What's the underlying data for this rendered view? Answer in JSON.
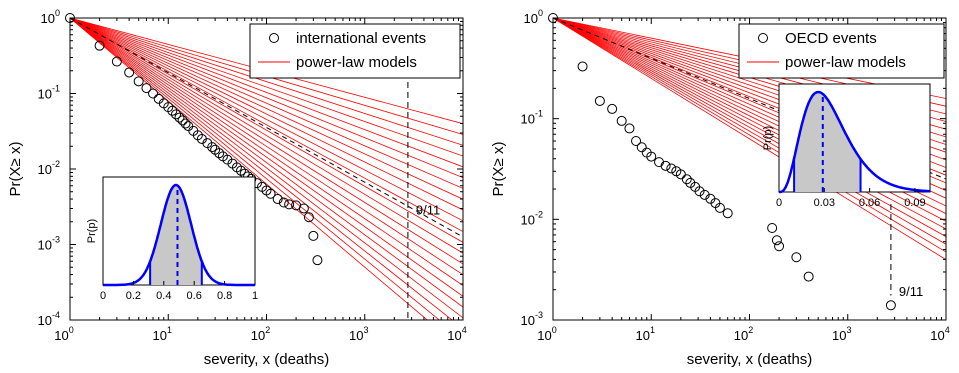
{
  "chart_data": [
    {
      "type": "scatter",
      "scale": "log-log",
      "xlabel": "severity, x (deaths)",
      "ylabel": "Pr(X≥ x)",
      "xlim": [
        1,
        10000
      ],
      "ylim": [
        0.0001,
        1
      ],
      "x_ticks": [
        {
          "base": "10",
          "exp": "0"
        },
        {
          "base": "10",
          "exp": "1"
        },
        {
          "base": "10",
          "exp": "2"
        },
        {
          "base": "10",
          "exp": "3"
        },
        {
          "base": "10",
          "exp": "4"
        }
      ],
      "y_ticks": [
        {
          "base": "10",
          "exp": "0"
        },
        {
          "base": "10",
          "exp": "-1"
        },
        {
          "base": "10",
          "exp": "-2"
        },
        {
          "base": "10",
          "exp": "-3"
        },
        {
          "base": "10",
          "exp": "-4"
        }
      ],
      "legend": {
        "placement": "top-right",
        "entries": [
          "international events",
          "power-law models"
        ]
      },
      "series": [
        {
          "name": "international events",
          "marker": "open-circle",
          "x": [
            1,
            2,
            3,
            4,
            5,
            6,
            7,
            8,
            9,
            10,
            11,
            12,
            13,
            14,
            15,
            16,
            18,
            20,
            22,
            25,
            28,
            30,
            33,
            36,
            40,
            45,
            50,
            55,
            60,
            65,
            70,
            80,
            90,
            100,
            110,
            130,
            150,
            170,
            200,
            240,
            270,
            300,
            330
          ],
          "y": [
            1.0,
            0.43,
            0.265,
            0.19,
            0.145,
            0.118,
            0.1,
            0.085,
            0.074,
            0.066,
            0.059,
            0.053,
            0.048,
            0.044,
            0.04,
            0.037,
            0.032,
            0.028,
            0.025,
            0.022,
            0.0195,
            0.018,
            0.0162,
            0.0147,
            0.0133,
            0.0118,
            0.0105,
            0.0095,
            0.0087,
            0.008,
            0.0074,
            0.0065,
            0.0058,
            0.0052,
            0.0047,
            0.004,
            0.0036,
            0.0034,
            0.0033,
            0.003,
            0.0023,
            0.0013,
            0.00062
          ]
        },
        {
          "name": "power-law models",
          "color": "#ff0000",
          "line": "solid",
          "fits": {
            "from_x": 1,
            "alpha_range": [
              1.35,
              2.1
            ],
            "count": 22
          }
        }
      ],
      "annotations": [
        {
          "text": "9/11",
          "x": 2749,
          "style": "dashed-vertical"
        }
      ],
      "inset": {
        "type": "area",
        "ylabel": "Pr(p)",
        "xlim": [
          0,
          1
        ],
        "x_ticks": [
          "0",
          "0.2",
          "0.4",
          "0.6",
          "0.8",
          "1"
        ],
        "curve": {
          "mean": 0.48,
          "sd": 0.1
        },
        "shaded_interval": [
          0.31,
          0.65
        ],
        "marker_line_x": 0.49
      }
    },
    {
      "type": "scatter",
      "scale": "log-log",
      "xlabel": "severity, x (deaths)",
      "ylabel": "Pr(X≥ x)",
      "xlim": [
        1,
        10000
      ],
      "ylim": [
        0.001,
        1
      ],
      "x_ticks": [
        {
          "base": "10",
          "exp": "0"
        },
        {
          "base": "10",
          "exp": "1"
        },
        {
          "base": "10",
          "exp": "2"
        },
        {
          "base": "10",
          "exp": "3"
        },
        {
          "base": "10",
          "exp": "4"
        }
      ],
      "y_ticks": [
        {
          "base": "10",
          "exp": "0"
        },
        {
          "base": "10",
          "exp": "-1"
        },
        {
          "base": "10",
          "exp": "-2"
        },
        {
          "base": "10",
          "exp": "-3"
        }
      ],
      "legend": {
        "placement": "top-right",
        "entries": [
          "OECD events",
          "power-law models"
        ]
      },
      "series": [
        {
          "name": "OECD events",
          "marker": "open-circle",
          "x": [
            1,
            2,
            3,
            4,
            5,
            6,
            7,
            8,
            9,
            10,
            12,
            14,
            16,
            18,
            20,
            23,
            25,
            28,
            31,
            35,
            40,
            45,
            50,
            60,
            170,
            190,
            200,
            300,
            400,
            2749
          ],
          "y": [
            1.0,
            0.33,
            0.15,
            0.125,
            0.095,
            0.08,
            0.06,
            0.052,
            0.046,
            0.042,
            0.037,
            0.034,
            0.032,
            0.03,
            0.028,
            0.025,
            0.023,
            0.021,
            0.019,
            0.0175,
            0.016,
            0.0145,
            0.013,
            0.0115,
            0.0082,
            0.0062,
            0.0054,
            0.0042,
            0.0027,
            0.0014
          ]
        },
        {
          "name": "power-law models",
          "color": "#ff0000",
          "line": "solid",
          "fits": {
            "from_x": 1,
            "alpha_range": [
              1.2,
              1.6
            ],
            "count": 22
          }
        }
      ],
      "annotations": [
        {
          "text": "9/11",
          "x": 2749,
          "style": "dashed-vertical"
        }
      ],
      "inset": {
        "type": "area",
        "ylabel": "Pr(p)",
        "xlim": [
          0,
          0.1
        ],
        "x_ticks": [
          "0",
          "0.03",
          "0.06",
          "0.09"
        ],
        "curve": {
          "shape": "right-skewed",
          "mode": 0.026
        },
        "shaded_interval": [
          0.01,
          0.054
        ],
        "marker_line_x": 0.029
      }
    }
  ]
}
